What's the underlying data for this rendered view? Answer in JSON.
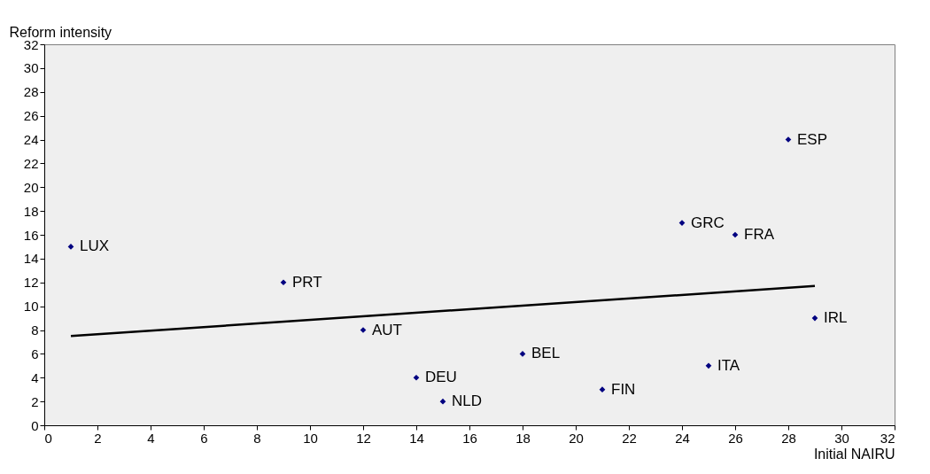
{
  "chart_data": {
    "type": "scatter",
    "xlabel": "Initial NAIRU",
    "ylabel": "Reform intensity",
    "xlim": [
      0,
      32
    ],
    "ylim": [
      0,
      32
    ],
    "xticks": [
      0,
      2,
      4,
      6,
      8,
      10,
      12,
      14,
      16,
      18,
      20,
      22,
      24,
      26,
      28,
      30,
      32
    ],
    "yticks": [
      0,
      2,
      4,
      6,
      8,
      10,
      12,
      14,
      16,
      18,
      20,
      22,
      24,
      26,
      28,
      30,
      32
    ],
    "marker": "diamond",
    "series": [
      {
        "type": "scatter",
        "color": "#000080",
        "x": [
          1,
          9,
          12,
          14,
          15,
          18,
          21,
          24,
          25,
          26,
          28,
          29
        ],
        "values": [
          15,
          12,
          8,
          4,
          2,
          6,
          3,
          17,
          5,
          16,
          24,
          9
        ]
      },
      {
        "type": "line",
        "marker": "none",
        "color": "#000000",
        "x": [
          1,
          29
        ],
        "values": [
          7.5,
          11.7
        ]
      }
    ],
    "annotations": [
      {
        "text": "LUX",
        "x": 1,
        "y": 15
      },
      {
        "text": "PRT",
        "x": 9,
        "y": 12
      },
      {
        "text": "AUT",
        "x": 12,
        "y": 8
      },
      {
        "text": "DEU",
        "x": 14,
        "y": 4
      },
      {
        "text": "NLD",
        "x": 15,
        "y": 2
      },
      {
        "text": "BEL",
        "x": 18,
        "y": 6
      },
      {
        "text": "FIN",
        "x": 21,
        "y": 3
      },
      {
        "text": "GRC",
        "x": 24,
        "y": 17
      },
      {
        "text": "ITA",
        "x": 25,
        "y": 5
      },
      {
        "text": "FRA",
        "x": 26,
        "y": 16
      },
      {
        "text": "ESP",
        "x": 28,
        "y": 24
      },
      {
        "text": "IRL",
        "x": 29,
        "y": 9
      }
    ]
  }
}
